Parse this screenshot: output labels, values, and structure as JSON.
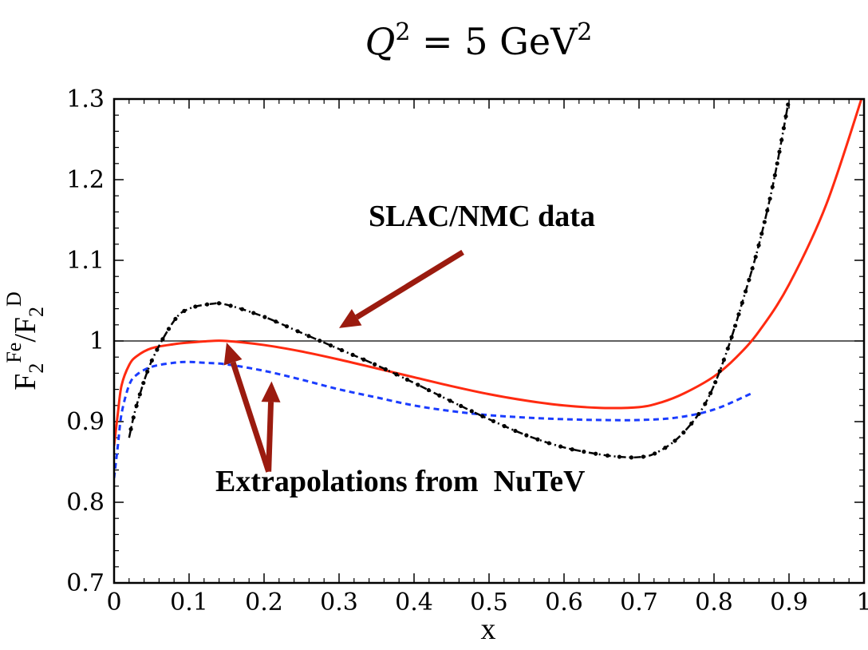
{
  "chart_data": {
    "type": "line",
    "title": {
      "main": "Q",
      "sup1": "2",
      "mid": " = 5 GeV",
      "sup2": "2"
    },
    "xlabel": "x",
    "ylabel": {
      "main": "F",
      "sub1": "2",
      "sup1": "Fe",
      "slash": "/F",
      "sub2": "2",
      "sup2": "D"
    },
    "xlim": [
      0,
      1
    ],
    "ylim": [
      0.7,
      1.3
    ],
    "x_ticks": [
      0,
      0.1,
      0.2,
      0.3,
      0.4,
      0.5,
      0.6,
      0.7,
      0.8,
      0.9,
      1
    ],
    "x_tick_labels": [
      "0",
      "0.1",
      "0.2",
      "0.3",
      "0.4",
      "0.5",
      "0.6",
      "0.7",
      "0.8",
      "0.9",
      "1"
    ],
    "y_ticks": [
      0.7,
      0.8,
      0.9,
      1.0,
      1.1,
      1.2,
      1.3
    ],
    "y_tick_labels": [
      "0.7",
      "0.8",
      "0.9",
      "1",
      "1.1",
      "1.2",
      "1.3"
    ],
    "reference_line": {
      "y": 1.0,
      "color": "#000000"
    },
    "series": [
      {
        "color": "#ff2a10",
        "style": "solid",
        "x": [
          0.0,
          0.005,
          0.01,
          0.02,
          0.03,
          0.05,
          0.08,
          0.1,
          0.13,
          0.15,
          0.2,
          0.25,
          0.3,
          0.35,
          0.4,
          0.45,
          0.5,
          0.55,
          0.6,
          0.65,
          0.7,
          0.73,
          0.76,
          0.8,
          0.83,
          0.86,
          0.9,
          0.95,
          1.0
        ],
        "y": [
          0.87,
          0.91,
          0.945,
          0.97,
          0.981,
          0.991,
          0.996,
          0.998,
          1.0,
          1.0,
          0.995,
          0.987,
          0.977,
          0.966,
          0.955,
          0.944,
          0.934,
          0.926,
          0.92,
          0.917,
          0.918,
          0.924,
          0.935,
          0.956,
          0.98,
          1.012,
          1.07,
          1.17,
          1.31
        ]
      },
      {
        "color": "#1a3cff",
        "style": "dashed",
        "x": [
          0.0,
          0.005,
          0.01,
          0.02,
          0.03,
          0.05,
          0.08,
          0.1,
          0.12,
          0.15,
          0.2,
          0.25,
          0.3,
          0.35,
          0.4,
          0.45,
          0.5,
          0.55,
          0.6,
          0.65,
          0.7,
          0.75,
          0.8,
          0.85
        ],
        "y": [
          0.83,
          0.87,
          0.91,
          0.945,
          0.958,
          0.968,
          0.973,
          0.974,
          0.973,
          0.971,
          0.963,
          0.952,
          0.94,
          0.93,
          0.92,
          0.913,
          0.908,
          0.905,
          0.903,
          0.902,
          0.902,
          0.905,
          0.915,
          0.935
        ]
      },
      {
        "color": "#000000",
        "style": "dash-dot",
        "x": [
          0.02,
          0.03,
          0.05,
          0.08,
          0.1,
          0.13,
          0.15,
          0.2,
          0.25,
          0.3,
          0.35,
          0.4,
          0.45,
          0.5,
          0.55,
          0.6,
          0.65,
          0.68,
          0.7,
          0.72,
          0.75,
          0.78,
          0.8,
          0.82,
          0.84,
          0.86,
          0.88,
          0.9
        ],
        "y": [
          0.88,
          0.92,
          0.975,
          1.025,
          1.04,
          1.046,
          1.045,
          1.03,
          1.01,
          0.99,
          0.97,
          0.948,
          0.925,
          0.903,
          0.883,
          0.868,
          0.859,
          0.856,
          0.856,
          0.86,
          0.878,
          0.91,
          0.945,
          0.995,
          1.055,
          1.12,
          1.2,
          1.3
        ]
      }
    ],
    "annotations": [
      {
        "text": "SLAC/NMC data"
      },
      {
        "text": "Extrapolations from  NuTeV"
      }
    ],
    "arrow_color": "#9b1b0f"
  }
}
